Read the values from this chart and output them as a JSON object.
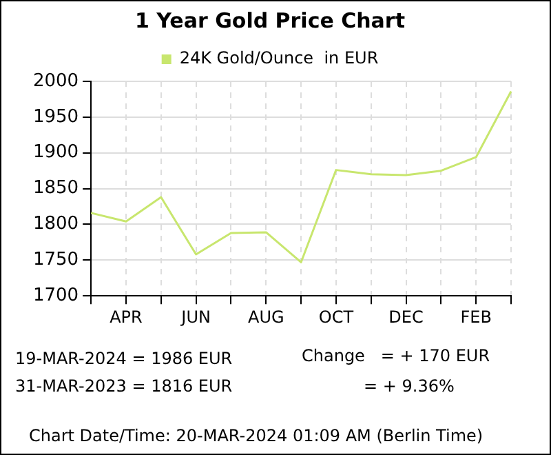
{
  "chart_data": {
    "type": "line",
    "title": "1 Year Gold Price Chart",
    "categories": [
      null,
      "APR",
      null,
      "JUN",
      null,
      "AUG",
      null,
      "OCT",
      null,
      "DEC",
      null,
      "FEB",
      null
    ],
    "series": [
      {
        "name": "24K Gold/Ounce  in EUR",
        "color": "#c8e66e",
        "values": [
          1816,
          1804,
          1838,
          1758,
          1788,
          1789,
          1747,
          1876,
          1870,
          1869,
          1875,
          1894,
          1986
        ]
      }
    ],
    "ylim": [
      1700,
      2000
    ],
    "yticks": [
      1700,
      1750,
      1800,
      1850,
      1900,
      1950,
      2000
    ],
    "grid": true,
    "legend": "top",
    "marker": "none",
    "line_style": "solid",
    "annotations": [
      "19-MAR-2024 = 1986 EUR",
      "31-MAR-2023 = 1816 EUR",
      "Change   = + 170 EUR",
      "= + 9.36%",
      "Chart Date/Time: 20-MAR-2024 01:09 AM (Berlin Time)"
    ]
  }
}
